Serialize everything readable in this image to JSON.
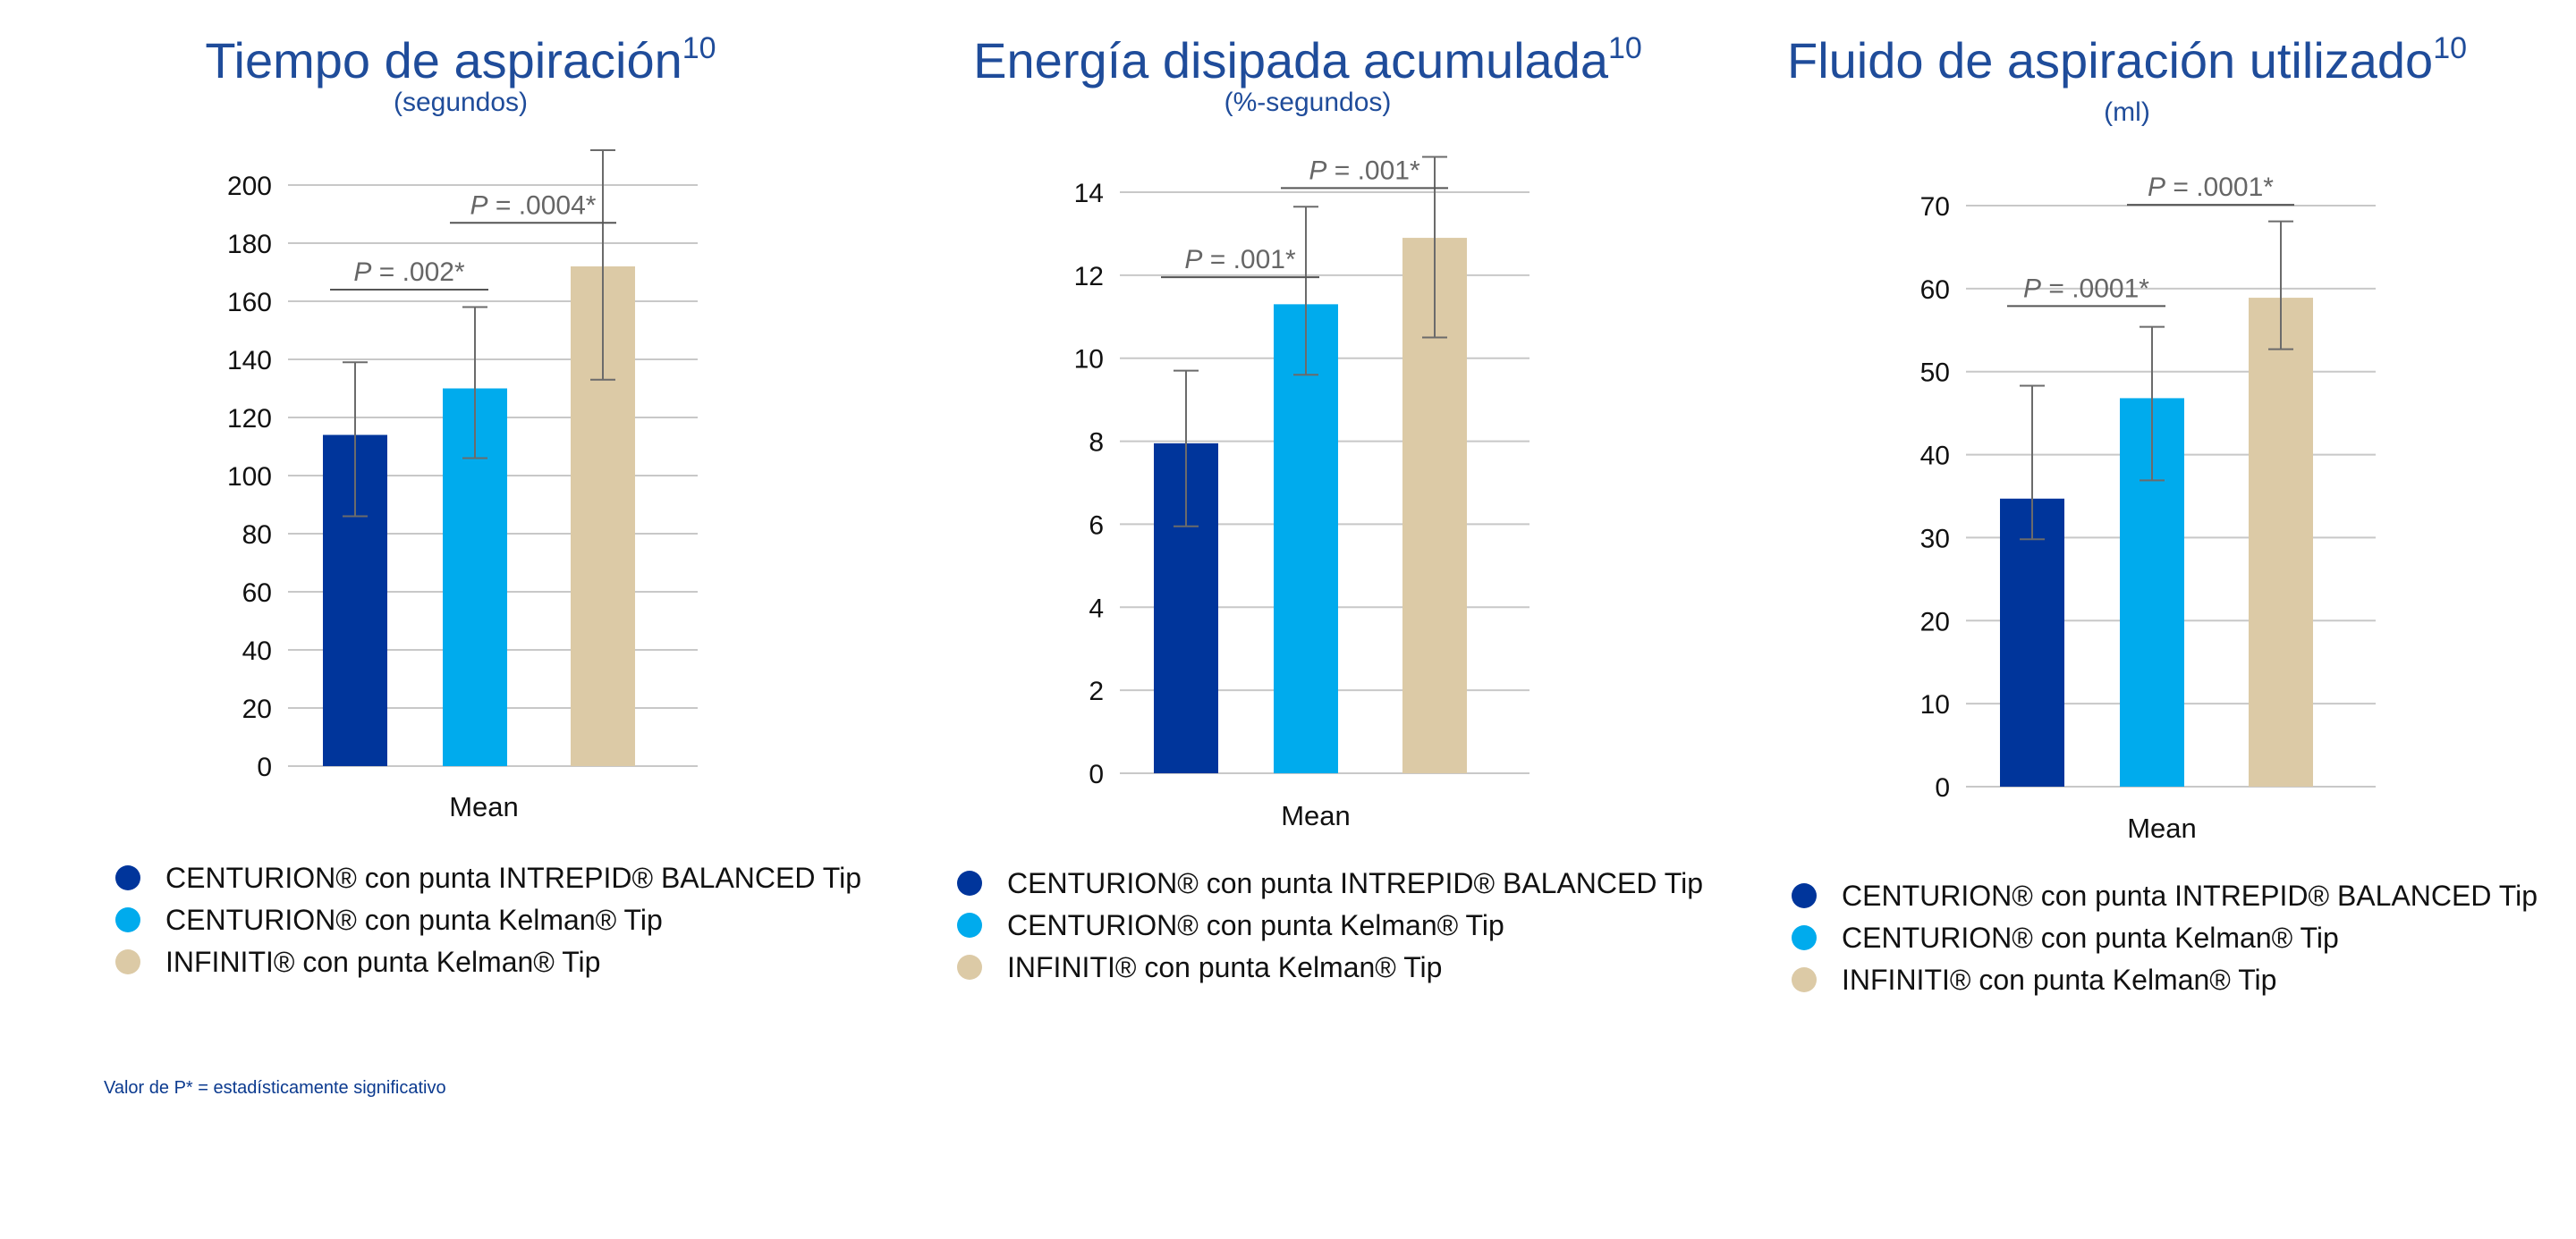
{
  "colors": {
    "title": "#1f4c9a",
    "axis_text": "#111111",
    "grid": "#c8c8c8",
    "annotation": "#666666",
    "series": [
      "#00359b",
      "#00abed",
      "#dccaa6"
    ]
  },
  "footnote": "Valor de P* = estadísticamente significativo",
  "chart_data": [
    {
      "type": "bar",
      "title": "Tiempo de aspiración",
      "title_sup": "10",
      "subtitle": "(segundos)",
      "categories": [
        "Mean"
      ],
      "ylim": [
        0,
        200
      ],
      "yticks": [
        0,
        20,
        40,
        60,
        80,
        100,
        120,
        140,
        160,
        180,
        200
      ],
      "grid": true,
      "legend_position": "bottom",
      "series": [
        {
          "name": "CENTURION® con punta INTREPID® BALANCED Tip",
          "values": [
            114
          ],
          "err_low": [
            86
          ],
          "err_high": [
            139
          ]
        },
        {
          "name": "CENTURION® con punta Kelman® Tip",
          "values": [
            130
          ],
          "err_low": [
            106
          ],
          "err_high": [
            158
          ]
        },
        {
          "name": "INFINITI® con punta Kelman® Tip",
          "values": [
            172
          ],
          "err_low": [
            133
          ],
          "err_high": [
            212
          ]
        }
      ],
      "annotations": [
        {
          "p_label": "P",
          "text": " = .002*",
          "from": 0,
          "to": 1,
          "y": 164
        },
        {
          "p_label": "P",
          "text": " = .0004*",
          "from": 1,
          "to": 2,
          "y": 187
        }
      ]
    },
    {
      "type": "bar",
      "title": "Energía disipada acumulada",
      "title_sup": "10",
      "subtitle": "(%-segundos)",
      "categories": [
        "Mean"
      ],
      "ylim": [
        0,
        14
      ],
      "yticks": [
        0,
        2,
        4,
        6,
        8,
        10,
        12,
        14
      ],
      "grid": true,
      "legend_position": "bottom",
      "series": [
        {
          "name": "CENTURION® con punta INTREPID® BALANCED Tip",
          "values": [
            7.95
          ],
          "err_low": [
            5.95
          ],
          "err_high": [
            9.7
          ]
        },
        {
          "name": "CENTURION® con punta Kelman® Tip",
          "values": [
            11.3
          ],
          "err_low": [
            9.6
          ],
          "err_high": [
            13.65
          ]
        },
        {
          "name": "INFINITI® con punta Kelman® Tip",
          "values": [
            12.9
          ],
          "err_low": [
            10.5
          ],
          "err_high": [
            14.85
          ]
        }
      ],
      "annotations": [
        {
          "p_label": "P",
          "text": " = .001*",
          "from": 0,
          "to": 1,
          "y": 11.95
        },
        {
          "p_label": "P",
          "text": " = .001*",
          "from": 1,
          "to": 2,
          "y": 14.1
        }
      ]
    },
    {
      "type": "bar",
      "title": "Fluido de aspiración utilizado",
      "title_sup": "10",
      "subtitle": "(ml)",
      "categories": [
        "Mean"
      ],
      "ylim": [
        0,
        70
      ],
      "yticks": [
        0,
        10,
        20,
        30,
        40,
        50,
        60,
        70
      ],
      "grid": true,
      "legend_position": "bottom",
      "series": [
        {
          "name": "CENTURION® con punta INTREPID® BALANCED Tip",
          "values": [
            34.7
          ],
          "err_low": [
            29.8
          ],
          "err_high": [
            48.3
          ]
        },
        {
          "name": "CENTURION® con punta Kelman® Tip",
          "values": [
            46.8
          ],
          "err_low": [
            36.9
          ],
          "err_high": [
            55.4
          ]
        },
        {
          "name": "INFINITI® con punta Kelman® Tip",
          "values": [
            58.9
          ],
          "err_low": [
            52.7
          ],
          "err_high": [
            68.1
          ]
        }
      ],
      "annotations": [
        {
          "p_label": "P",
          "text": " = .0001*",
          "from": 0,
          "to": 1,
          "y": 57.9
        },
        {
          "p_label": "P",
          "text": " = .0001*",
          "from": 1,
          "to": 2,
          "y": 70.1
        }
      ]
    }
  ]
}
